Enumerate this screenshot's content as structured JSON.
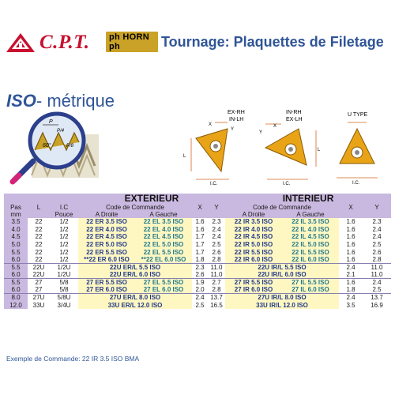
{
  "header": {
    "brand": "C.P.T.",
    "partner": "ph HORN ph",
    "title": "Tournage: Plaquettes de Filetage"
  },
  "section": {
    "iso": "ISO",
    "metrique": "- métrique"
  },
  "illustration": {
    "magnifier_labels": [
      "P",
      "P/4",
      "60°",
      "P/8"
    ],
    "insert_labels": {
      "exrh": "EX-RH",
      "inlh": "IN-LH",
      "inrh": "IN-RH",
      "exlh": "EX-LH",
      "utype": "U TYPE",
      "ic": "I.C.",
      "l": "L",
      "x": "X",
      "y": "Y"
    }
  },
  "table": {
    "exterieur": "EXTERIEUR",
    "interieur": "INTERIEUR",
    "code_commande": "Code de Commande",
    "a_droite": "A Droite",
    "a_gauche": "A Gauche",
    "pas": "Pas",
    "mm": "mm",
    "l": "L",
    "ic": "I.C",
    "pouce": "Pouce",
    "x": "X",
    "y": "Y",
    "rows": [
      {
        "pas": "3.5",
        "l": "22",
        "ic": "1/2",
        "ed": "22 ER 3.5 ISO",
        "eg": "22 EL 3.5 ISO",
        "ex": "1.6",
        "ey": "2.3",
        "id": "22 IR 3.5 ISO",
        "ig": "22 IL 3.5 ISO",
        "ix": "1.6",
        "iy": "2.3"
      },
      {
        "pas": "4.0",
        "l": "22",
        "ic": "1/2",
        "ed": "22 ER 4.0 ISO",
        "eg": "22 EL 4.0 ISO",
        "ex": "1.6",
        "ey": "2.4",
        "id": "22 IR 4.0 ISO",
        "ig": "22 IL 4.0 ISO",
        "ix": "1.6",
        "iy": "2.4"
      },
      {
        "pas": "4.5",
        "l": "22",
        "ic": "1/2",
        "ed": "22 ER 4.5 ISO",
        "eg": "22 EL 4.5 ISO",
        "ex": "1.7",
        "ey": "2.4",
        "id": "22 IR 4.5 ISO",
        "ig": "22 IL 4.5 ISO",
        "ix": "1.6",
        "iy": "2.4"
      },
      {
        "pas": "5.0",
        "l": "22",
        "ic": "1/2",
        "ed": "22 ER 5.0 ISO",
        "eg": "22 EL 5.0 ISO",
        "ex": "1.7",
        "ey": "2.5",
        "id": "22 IR 5.0 ISO",
        "ig": "22 IL 5.0 ISO",
        "ix": "1.6",
        "iy": "2.5"
      },
      {
        "pas": "5.5",
        "l": "22",
        "ic": "1/2",
        "ed": "22 ER 5.5 ISO",
        "eg": "22 EL 5.5 ISO",
        "ex": "1.7",
        "ey": "2.6",
        "id": "22 IR 5.5 ISO",
        "ig": "22 IL 5.5 ISO",
        "ix": "1.6",
        "iy": "2.6"
      },
      {
        "pas": "6.0",
        "l": "22",
        "ic": "1/2",
        "ed": "**22 ER 6.0 ISO",
        "eg": "**22 EL 6.0 ISO",
        "ex": "1.8",
        "ey": "2.8",
        "id": "22 IR 6.0 ISO",
        "ig": "22 IL 6.0 ISO",
        "ix": "1.6",
        "iy": "2.8"
      }
    ],
    "u_rows": [
      {
        "pas": "5.5",
        "l": "22U",
        "ic": "1/2U",
        "e": "22U ER/L 5.5 ISO",
        "ex": "2.3",
        "ey": "11.0",
        "i": "22U IR/L 5.5 ISO",
        "ix": "2.4",
        "iy": "11.0"
      },
      {
        "pas": "6.0",
        "l": "22U",
        "ic": "1/2U",
        "e": "22U ER/L 6.0 ISO",
        "ex": "2.6",
        "ey": "11.0",
        "i": "22U IR/L 6.0 ISO",
        "ix": "2.1",
        "iy": "11.0"
      }
    ],
    "rows27": [
      {
        "pas": "5.5",
        "l": "27",
        "ic": "5/8",
        "ed": "27 ER 5.5 ISO",
        "eg": "27 EL 5.5 ISO",
        "ex": "1.9",
        "ey": "2.7",
        "id": "27 IR 5.5 ISO",
        "ig": "27 IL 5.5 ISO",
        "ix": "1.6",
        "iy": "2.4"
      },
      {
        "pas": "6.0",
        "l": "27",
        "ic": "5/8",
        "ed": "27 ER 6.0 ISO",
        "eg": "27 EL 6.0 ISO",
        "ex": "2.0",
        "ey": "2.8",
        "id": "27 IR 6.0 ISO",
        "ig": "27 IL 6.0 ISO",
        "ix": "1.8",
        "iy": "2.5"
      }
    ],
    "last_rows": [
      {
        "pas": "8.0",
        "l": "27U",
        "ic": "5/8U",
        "e": "27U ER/L 8.0 ISO",
        "ex": "2.4",
        "ey": "13.7",
        "i": "27U IR/L 8.0 ISO",
        "ix": "2.4",
        "iy": "13.7"
      },
      {
        "pas": "12.0",
        "l": "33U",
        "ic": "3/4U",
        "e": "33U ER/L 12.0 ISO",
        "ex": "2.5",
        "ey": "16.5",
        "i": "33U IR/L 12.0 ISO",
        "ix": "3.5",
        "iy": "16.9"
      }
    ]
  },
  "footnote": "Exemple de Commande: 22 IR 3.5 ISO BMA",
  "colors": {
    "brand_red": "#c8102e",
    "title_blue": "#2f5597",
    "header_purple": "#c9b8df",
    "code_yellow": "#fff7c2",
    "insert_gold": "#e8a317"
  }
}
